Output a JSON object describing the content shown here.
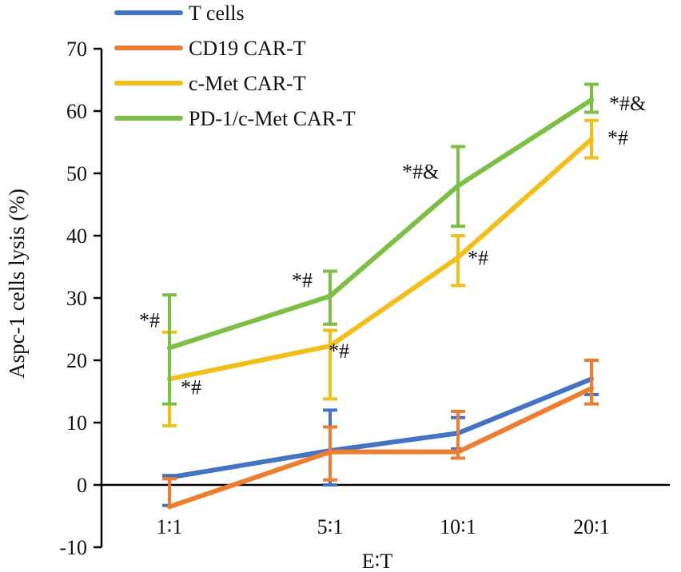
{
  "chart_data": {
    "type": "line",
    "title": "",
    "xlabel": "E∶T",
    "ylabel": "Aspc-1 cells lysis (%)",
    "ylim": [
      -10,
      70
    ],
    "yticks": [
      "-10",
      "0",
      "10",
      "20",
      "30",
      "40",
      "50",
      "60",
      "70"
    ],
    "categories": [
      "1∶1",
      "5∶1",
      "10∶1",
      "20∶1"
    ],
    "legend_position": "top-left",
    "grid": false,
    "series": [
      {
        "name": "T cells",
        "color": "#4472C4",
        "values": [
          1.2,
          5.5,
          8.3,
          17.0
        ],
        "err_low": [
          4.5,
          5.5,
          2.5,
          2.5
        ],
        "err_high": [
          0.3,
          6.5,
          2.5,
          3.0
        ],
        "annotations": [
          "",
          "",
          "",
          ""
        ]
      },
      {
        "name": "CD19 CAR-T",
        "color": "#ED7D31",
        "values": [
          -3.5,
          5.3,
          5.3,
          15.5
        ],
        "err_low": [
          0.0,
          4.5,
          1.0,
          2.5
        ],
        "err_high": [
          4.5,
          4.0,
          6.5,
          4.5
        ],
        "annotations": [
          "",
          "",
          "",
          ""
        ]
      },
      {
        "name": "c-Met CAR-T",
        "color": "#F2BE1A",
        "values": [
          17.0,
          22.3,
          36.5,
          55.5
        ],
        "err_low": [
          7.5,
          8.5,
          4.5,
          3.0
        ],
        "err_high": [
          7.5,
          2.5,
          3.5,
          3.0
        ],
        "annotations": [
          "*#",
          "*#",
          "*#",
          "*#"
        ]
      },
      {
        "name": "PD-1/c-Met CAR-T",
        "color": "#7DBE45",
        "values": [
          22.0,
          30.3,
          48.0,
          61.8
        ],
        "err_low": [
          9.0,
          4.5,
          6.5,
          2.0
        ],
        "err_high": [
          8.5,
          4.0,
          6.3,
          2.5
        ],
        "annotations": [
          "*#",
          "*#",
          "*#&",
          "*#&"
        ]
      }
    ]
  }
}
